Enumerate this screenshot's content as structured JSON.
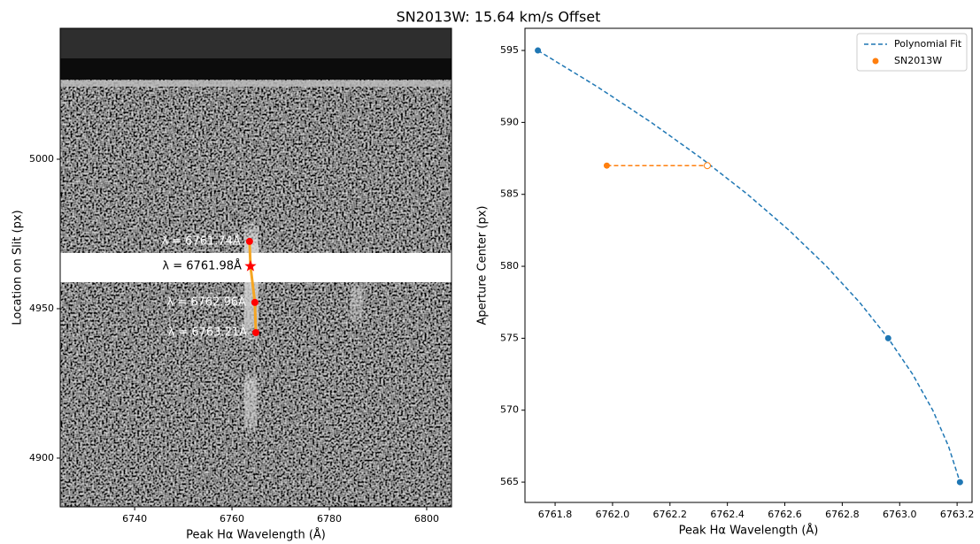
{
  "title": "SN2013W: 15.64 km/s Offset",
  "chart_data": [
    {
      "type": "image",
      "xlabel": "Peak Hα Wavelength (Å)",
      "ylabel": "Location on Slit (px)",
      "xlim": [
        6724.7,
        6805.1
      ],
      "ylim": [
        4883.7,
        5043.8
      ],
      "xticks": [
        6740,
        6760,
        6780,
        6800
      ],
      "yticks": [
        4900,
        4950,
        5000
      ],
      "points": {
        "x": [
          6763.6,
          6763.8,
          6764.7,
          6764.9
        ],
        "y": [
          4972.5,
          4964.2,
          4952.1,
          4942.0
        ],
        "labels": [
          "λ = 6761.74Å",
          "λ = 6761.98Å",
          "λ = 6762.96Å",
          "λ = 6763.21Å"
        ],
        "markers": [
          "circle",
          "star",
          "circle",
          "circle"
        ],
        "label_colors": [
          "white",
          "black",
          "white",
          "white"
        ],
        "color": "red",
        "line_color": "#f5a623"
      }
    },
    {
      "type": "line",
      "xlabel": "Peak Hα Wavelength (Å)",
      "ylabel": "Aperture Center (px)",
      "xlim": [
        6761.695,
        6763.252
      ],
      "ylim": [
        563.59,
        596.54
      ],
      "xticks": [
        6761.8,
        {
          "value": 6762.0,
          "label": "6762.0"
        },
        6762.2,
        6762.4,
        6762.6,
        6762.8,
        {
          "value": 6763.0,
          "label": "6763.0"
        },
        6763.2
      ],
      "yticks": [
        565,
        570,
        575,
        580,
        585,
        590,
        595
      ],
      "legend": "upper right",
      "series": [
        {
          "name": "Polynomial Fit",
          "color": "#1f77b4",
          "style": "dashed",
          "x": [
            6761.74,
            6761.945,
            6762.135,
            6762.31,
            6762.47,
            6762.615,
            6762.745,
            6762.86,
            6762.96,
            6763.045,
            6763.115,
            6763.17,
            6763.21
          ],
          "values": [
            595,
            592.5,
            590,
            587.5,
            585,
            582.5,
            580,
            577.5,
            575,
            572.5,
            570,
            567.5,
            565
          ]
        },
        {
          "name": "SN2013W",
          "color": "#ff7f0e",
          "x": [
            6761.98
          ],
          "values": [
            587
          ]
        }
      ],
      "fit_points": {
        "x": [
          6761.74,
          6762.96,
          6763.21
        ],
        "y": [
          595,
          575,
          565
        ],
        "color": "#1f77b4"
      },
      "offset_line": {
        "x": [
          6761.98,
          6762.33
        ],
        "y": [
          587,
          587
        ],
        "color": "#ff7f0e"
      }
    }
  ]
}
